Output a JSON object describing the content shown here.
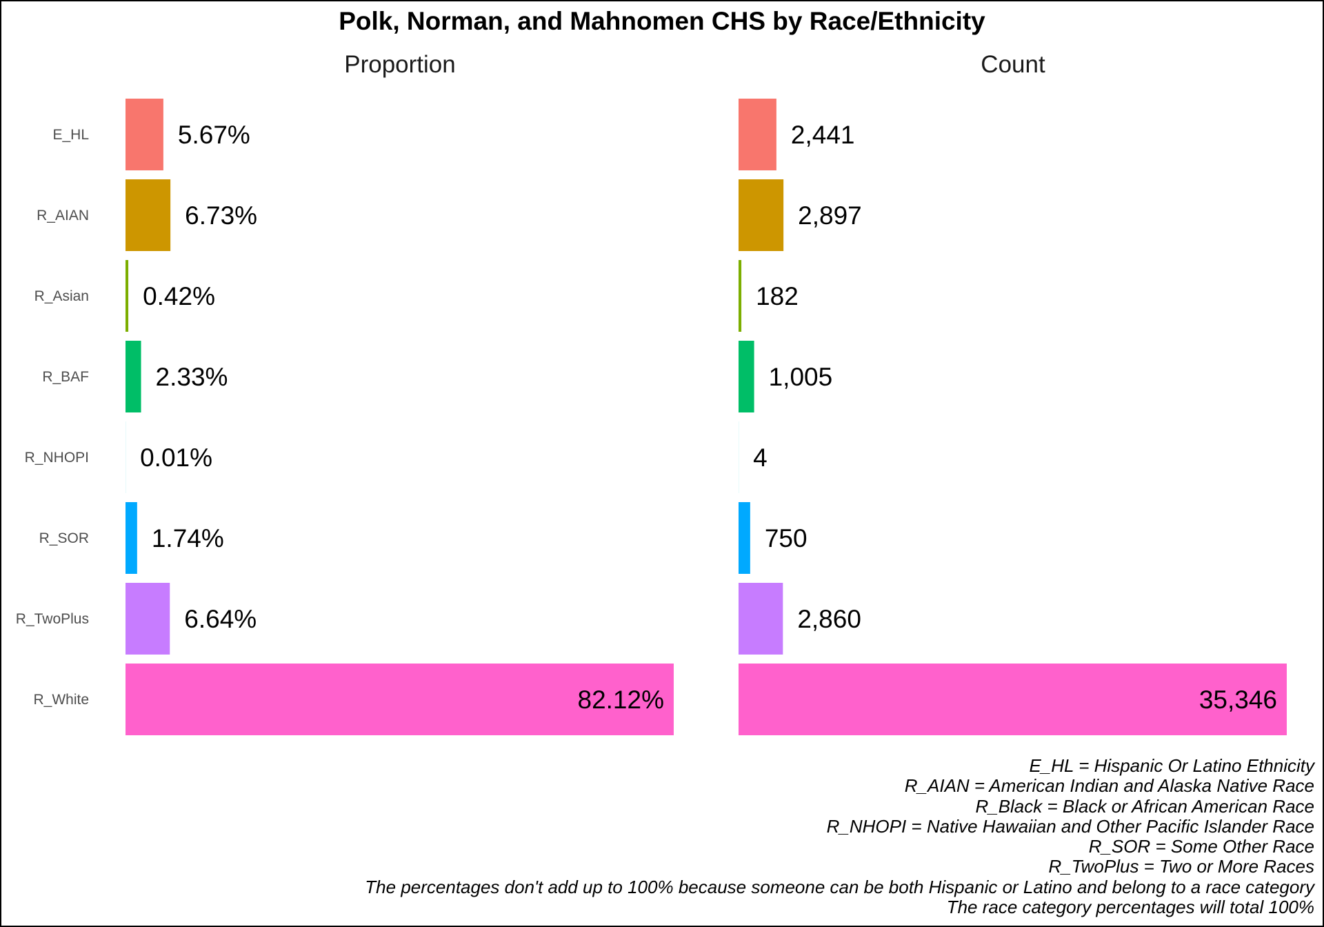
{
  "chart_data": {
    "type": "bar",
    "title": "Polk, Norman, and Mahnomen CHS by Race/Ethnicity",
    "categories": [
      "E_HL",
      "R_AIAN",
      "R_Asian",
      "R_BAF",
      "R_NHOPI",
      "R_SOR",
      "R_TwoPlus",
      "R_White"
    ],
    "colors": [
      "#F8766D",
      "#CD9600",
      "#7CAE00",
      "#00BE67",
      "#00BFC4",
      "#00A9FF",
      "#C77CFF",
      "#FF61CC"
    ],
    "panels": [
      {
        "title": "Proportion",
        "values": [
          5.67,
          6.73,
          0.42,
          2.33,
          0.01,
          1.74,
          6.64,
          82.12
        ],
        "labels": [
          "5.67%",
          "6.73%",
          "0.42%",
          "2.33%",
          "0.01%",
          "1.74%",
          "6.64%",
          "82.12%"
        ]
      },
      {
        "title": "Count",
        "values": [
          2441,
          2897,
          182,
          1005,
          4,
          750,
          2860,
          35346
        ],
        "labels": [
          "2,441",
          "2,897",
          "182",
          "1,005",
          "4",
          "750",
          "2,860",
          "35,346"
        ]
      }
    ],
    "orientation": "horizontal",
    "grid": false
  },
  "notes": [
    "E_HL = Hispanic Or Latino Ethnicity",
    "R_AIAN = American Indian and Alaska Native Race",
    "R_Black = Black or African American Race",
    "R_NHOPI = Native Hawaiian and Other Pacific Islander Race",
    "R_SOR = Some Other Race",
    "R_TwoPlus = Two or More Races",
    "The percentages don't add up to 100% because someone can be both Hispanic or Latino and belong to a race category",
    "The race category percentages will total 100%"
  ]
}
